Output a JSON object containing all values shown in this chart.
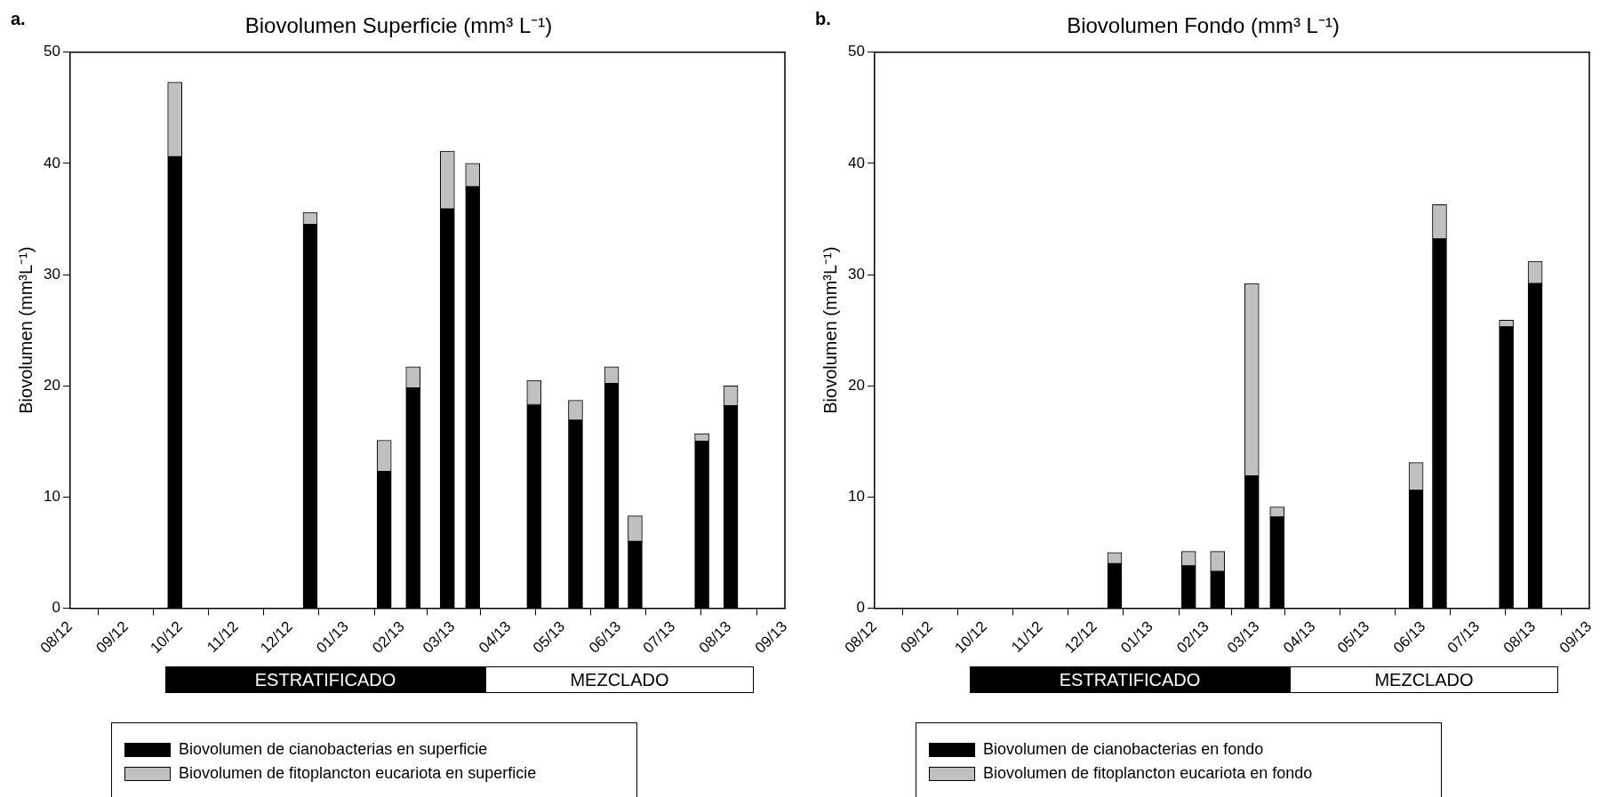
{
  "chart_data": [
    {
      "type": "bar",
      "stacked": true,
      "title": "Biovolumen Superficie (mm³ L⁻¹)",
      "ylabel": "Biovolumen (mm³L⁻¹)",
      "x": [
        "2012-09-28",
        "2012-12-12",
        "2013-01-22",
        "2013-02-07",
        "2013-02-26",
        "2013-03-12",
        "2013-04-15",
        "2013-05-08",
        "2013-05-28",
        "2013-06-10",
        "2013-07-17",
        "2013-08-02"
      ],
      "series": [
        {
          "name": "Biovolumen de cianobacterias en superficie",
          "color": "#000000",
          "values": [
            40.6,
            34.5,
            12.3,
            19.8,
            35.9,
            37.9,
            18.3,
            16.9,
            20.2,
            6.0,
            15.0,
            18.2
          ]
        },
        {
          "name": "Biovolumen de fitoplancton eucariota en superficie",
          "color": "#c0c0c0",
          "values": [
            6.7,
            1.1,
            2.8,
            1.9,
            5.2,
            2.1,
            2.2,
            1.8,
            1.5,
            2.3,
            0.7,
            1.8
          ]
        }
      ],
      "xlim": [
        "2012-08-01",
        "2013-09-01"
      ],
      "xticks": [
        {
          "value": "2012-08-01",
          "label": "08/12"
        },
        {
          "value": "2012-09-01",
          "label": "09/12"
        },
        {
          "value": "2012-10-01",
          "label": "10/12"
        },
        {
          "value": "2012-11-01",
          "label": "11/12"
        },
        {
          "value": "2012-12-01",
          "label": "12/12"
        },
        {
          "value": "2013-01-01",
          "label": "01/13"
        },
        {
          "value": "2013-02-01",
          "label": "02/13"
        },
        {
          "value": "2013-03-01",
          "label": "03/13"
        },
        {
          "value": "2013-04-01",
          "label": "04/13"
        },
        {
          "value": "2013-05-01",
          "label": "05/13"
        },
        {
          "value": "2013-06-01",
          "label": "06/13"
        },
        {
          "value": "2013-07-01",
          "label": "07/13"
        },
        {
          "value": "2013-08-01",
          "label": "08/13"
        },
        {
          "value": "2013-09-01",
          "label": "09/13"
        }
      ],
      "ylim": [
        0,
        50
      ],
      "yticks": [
        0,
        10,
        20,
        30,
        40,
        50
      ],
      "grid": false,
      "legend": "bottom",
      "annotations": [
        "a.",
        "ESTRATIFICADO",
        "MEZCLADO"
      ]
    },
    {
      "type": "bar",
      "stacked": true,
      "title": "Biovolumen Fondo (mm³ L⁻¹)",
      "ylabel": "Biovolumen (mm³L⁻¹)",
      "x": [
        "2012-12-12",
        "2013-01-22",
        "2013-02-07",
        "2013-02-26",
        "2013-03-12",
        "2013-05-28",
        "2013-06-10",
        "2013-07-17",
        "2013-08-02"
      ],
      "series": [
        {
          "name": "Biovolumen de cianobacterias en fondo",
          "color": "#000000",
          "values": [
            4.0,
            3.8,
            3.3,
            11.9,
            8.2,
            10.6,
            33.2,
            25.3,
            29.2
          ]
        },
        {
          "name": "Biovolumen de fitoplancton eucariota en fondo",
          "color": "#c0c0c0",
          "values": [
            1.0,
            1.3,
            1.8,
            17.3,
            0.9,
            2.5,
            3.1,
            0.6,
            2.0
          ]
        }
      ],
      "xlim": [
        "2012-08-01",
        "2013-09-01"
      ],
      "xticks": [
        {
          "value": "2012-08-01",
          "label": "08/12"
        },
        {
          "value": "2012-09-01",
          "label": "09/12"
        },
        {
          "value": "2012-10-01",
          "label": "10/12"
        },
        {
          "value": "2012-11-01",
          "label": "11/12"
        },
        {
          "value": "2012-12-01",
          "label": "12/12"
        },
        {
          "value": "2013-01-01",
          "label": "01/13"
        },
        {
          "value": "2013-02-01",
          "label": "02/13"
        },
        {
          "value": "2013-03-01",
          "label": "03/13"
        },
        {
          "value": "2013-04-01",
          "label": "04/13"
        },
        {
          "value": "2013-05-01",
          "label": "05/13"
        },
        {
          "value": "2013-06-01",
          "label": "06/13"
        },
        {
          "value": "2013-07-01",
          "label": "07/13"
        },
        {
          "value": "2013-08-01",
          "label": "08/13"
        },
        {
          "value": "2013-09-01",
          "label": "09/13"
        }
      ],
      "ylim": [
        0,
        50
      ],
      "yticks": [
        0,
        10,
        20,
        30,
        40,
        50
      ],
      "grid": false,
      "legend": "bottom",
      "annotations": [
        "b.",
        "ESTRATIFICADO",
        "MEZCLADO"
      ]
    }
  ]
}
